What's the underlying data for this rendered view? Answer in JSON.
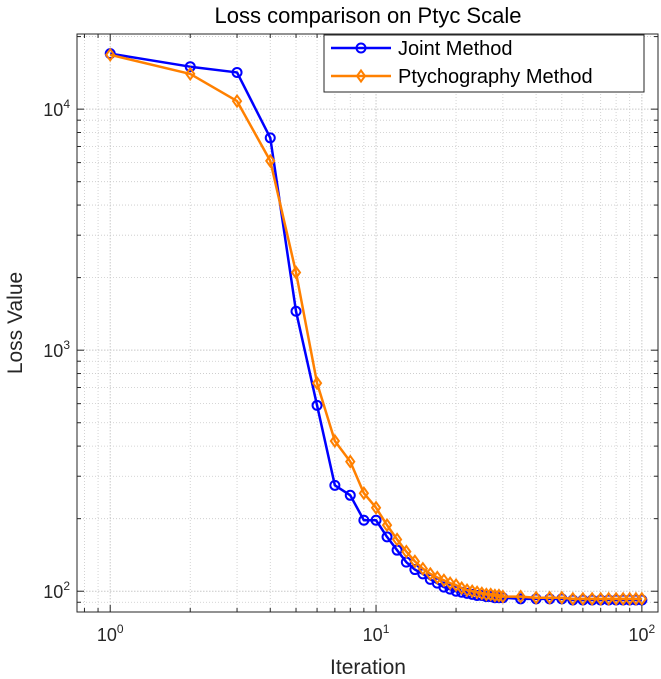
{
  "chart_data": {
    "type": "line",
    "title": "Loss comparison on Ptyc Scale",
    "xlabel": "Iteration",
    "ylabel": "Loss Value",
    "xscale": "log",
    "yscale": "log",
    "xlim": [
      0.75,
      115
    ],
    "ylim": [
      82,
      20500
    ],
    "xticks": [
      {
        "value": 1,
        "base": "10",
        "exp": "0"
      },
      {
        "value": 10,
        "base": "10",
        "exp": "1"
      },
      {
        "value": 100,
        "base": "10",
        "exp": "2"
      }
    ],
    "yticks": [
      {
        "value": 100,
        "base": "10",
        "exp": "2"
      },
      {
        "value": 1000,
        "base": "10",
        "exp": "3"
      },
      {
        "value": 10000,
        "base": "10",
        "exp": "4"
      }
    ],
    "grid": true,
    "minor_grid": true,
    "box": true,
    "legend_position": "top-right",
    "series": [
      {
        "name": "Joint Method",
        "color": "#0000ff",
        "marker": "circle",
        "x": [
          1,
          2,
          3,
          4,
          5,
          6,
          7,
          8,
          9,
          10,
          11,
          12,
          13,
          14,
          15,
          16,
          17,
          18,
          19,
          20,
          21,
          22,
          23,
          24,
          25,
          26,
          27,
          28,
          29,
          30,
          35,
          40,
          45,
          50,
          55,
          60,
          65,
          70,
          75,
          80,
          85,
          90,
          95,
          100
        ],
        "y": [
          17000,
          15000,
          14200,
          7600,
          1450,
          590,
          275,
          250,
          197,
          197,
          168,
          148,
          132,
          123,
          118,
          112,
          108,
          104,
          102,
          100,
          99,
          98,
          97,
          96,
          96,
          95,
          95,
          94,
          94,
          94,
          93,
          93,
          93,
          93,
          92,
          92,
          92,
          92,
          92,
          92,
          92,
          92,
          92,
          92
        ]
      },
      {
        "name": "Ptychography Method",
        "color": "#ff8000",
        "marker": "diamond",
        "x": [
          1,
          2,
          3,
          4,
          5,
          6,
          7,
          8,
          9,
          10,
          11,
          12,
          13,
          14,
          15,
          16,
          17,
          18,
          19,
          20,
          21,
          22,
          23,
          24,
          25,
          26,
          27,
          28,
          29,
          30,
          35,
          40,
          45,
          50,
          55,
          60,
          65,
          70,
          75,
          80,
          85,
          90,
          95,
          100
        ],
        "y": [
          16800,
          14000,
          10800,
          6100,
          2100,
          730,
          420,
          345,
          255,
          222,
          188,
          164,
          146,
          133,
          124,
          118,
          114,
          111,
          108,
          106,
          103,
          101,
          100,
          99,
          98,
          97,
          97,
          96,
          96,
          95,
          95,
          94,
          94,
          94,
          93,
          93,
          93,
          93,
          93,
          93,
          93,
          93,
          93,
          93
        ]
      }
    ]
  }
}
